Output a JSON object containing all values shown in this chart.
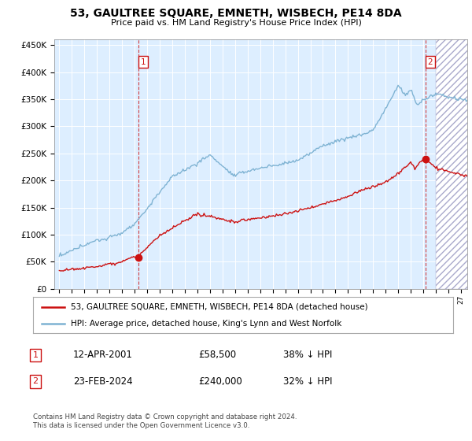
{
  "title": "53, GAULTREE SQUARE, EMNETH, WISBECH, PE14 8DA",
  "subtitle": "Price paid vs. HM Land Registry's House Price Index (HPI)",
  "legend_line1": "53, GAULTREE SQUARE, EMNETH, WISBECH, PE14 8DA (detached house)",
  "legend_line2": "HPI: Average price, detached house, King's Lynn and West Norfolk",
  "annotation1_date": "12-APR-2001",
  "annotation1_price": "£58,500",
  "annotation1_hpi": "38% ↓ HPI",
  "annotation2_date": "23-FEB-2024",
  "annotation2_price": "£240,000",
  "annotation2_hpi": "32% ↓ HPI",
  "footer": "Contains HM Land Registry data © Crown copyright and database right 2024.\nThis data is licensed under the Open Government Licence v3.0.",
  "hpi_color": "#7fb3d3",
  "price_color": "#cc1111",
  "background_color": "#ffffff",
  "plot_bg_color": "#ddeeff",
  "grid_color": "#ffffff",
  "ylim": [
    0,
    460000
  ],
  "yticks": [
    0,
    50000,
    100000,
    150000,
    200000,
    250000,
    300000,
    350000,
    400000,
    450000
  ],
  "sale1_year": 2001.28,
  "sale1_price": 58500,
  "sale2_year": 2024.15,
  "sale2_price": 240000,
  "hatch_start": 2025.0,
  "xlim_left": 1994.6,
  "xlim_right": 2027.5
}
